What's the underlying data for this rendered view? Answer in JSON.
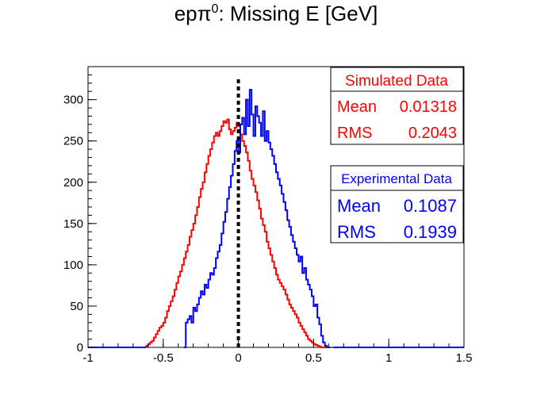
{
  "chart_data": {
    "type": "bar",
    "title_main": "epπ",
    "title_sup": "0",
    "title_rest": ": Missing E [GeV]",
    "xlim": [
      -1,
      1.5
    ],
    "ylim": [
      0,
      340
    ],
    "x_ticks": [
      -1,
      -0.5,
      0,
      0.5,
      1,
      1.5
    ],
    "x_tick_labels": [
      "-1",
      "-0.5",
      "0",
      "0.5",
      "1",
      "1.5"
    ],
    "y_ticks": [
      0,
      50,
      100,
      150,
      200,
      250,
      300
    ],
    "y_tick_labels": [
      "0",
      "50",
      "100",
      "150",
      "200",
      "250",
      "300"
    ],
    "bin_width": 0.0125,
    "reference_line_x": 0,
    "series": [
      {
        "name": "Simulated Data",
        "color": "#ff0000",
        "x_start": -0.6125,
        "values": [
          2,
          4,
          6,
          8,
          12,
          16,
          20,
          24,
          26,
          30,
          36,
          44,
          50,
          56,
          62,
          70,
          78,
          86,
          92,
          100,
          108,
          116,
          124,
          134,
          142,
          150,
          160,
          170,
          182,
          192,
          200,
          212,
          222,
          232,
          240,
          248,
          256,
          260,
          256,
          262,
          268,
          274,
          272,
          276,
          264,
          258,
          262,
          266,
          272,
          268,
          258,
          250,
          244,
          236,
          226,
          214,
          204,
          196,
          188,
          178,
          168,
          156,
          148,
          140,
          128,
          120,
          112,
          104,
          96,
          88,
          82,
          78,
          74,
          70,
          64,
          58,
          52,
          48,
          44,
          40,
          36,
          30,
          26,
          22,
          18,
          14,
          10,
          8,
          6,
          4,
          3,
          2,
          1,
          0,
          0,
          0
        ]
      },
      {
        "name": "Experimental Data",
        "color": "#0000ff",
        "x_start": -0.3625,
        "values": [
          0,
          30,
          34,
          38,
          30,
          48,
          44,
          52,
          60,
          68,
          64,
          76,
          72,
          82,
          90,
          88,
          96,
          108,
          116,
          124,
          138,
          152,
          164,
          180,
          194,
          208,
          222,
          238,
          250,
          236,
          270,
          278,
          258,
          300,
          268,
          312,
          282,
          256,
          292,
          280,
          272,
          256,
          286,
          250,
          262,
          248,
          240,
          232,
          222,
          212,
          204,
          196,
          186,
          176,
          166,
          154,
          146,
          136,
          128,
          120,
          112,
          104,
          110,
          90,
          96,
          82,
          76,
          70,
          62,
          50,
          52,
          36,
          28,
          14,
          6,
          2,
          0,
          0
        ]
      }
    ],
    "stats": [
      {
        "title": "Simulated Data",
        "mean_label": "Mean",
        "mean_value": "0.01318",
        "rms_label": "RMS",
        "rms_value": "0.2043"
      },
      {
        "title": "Experimental Data",
        "mean_label": "Mean",
        "mean_value": "0.1087",
        "rms_label": "RMS",
        "rms_value": "0.1939"
      }
    ]
  }
}
